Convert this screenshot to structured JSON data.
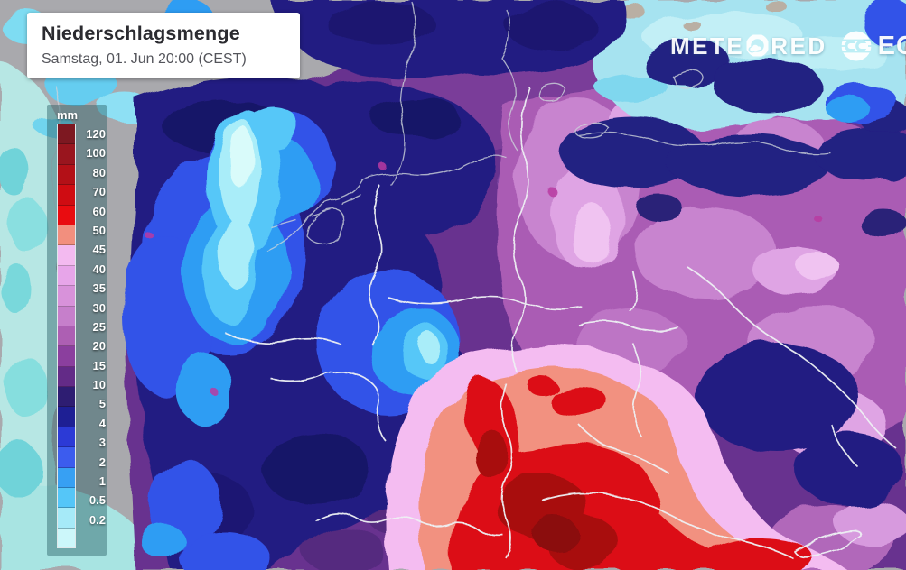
{
  "header": {
    "title": "Niederschlagsmenge",
    "subtitle": "Samstag, 01. Jun 20:00 (CEST)"
  },
  "watermark": {
    "brand": "METEORED",
    "brand_pre": "METE",
    "brand_post": "RED",
    "partner_abbrev": "EC"
  },
  "legend": {
    "unit": "mm",
    "steps": [
      {
        "label": "120",
        "color": "#7d1821"
      },
      {
        "label": "100",
        "color": "#99151e"
      },
      {
        "label": "80",
        "color": "#b31017"
      },
      {
        "label": "70",
        "color": "#cf0c12"
      },
      {
        "label": "60",
        "color": "#e90c10"
      },
      {
        "label": "50",
        "color": "#f28f7e"
      },
      {
        "label": "45",
        "color": "#f3baf0"
      },
      {
        "label": "40",
        "color": "#e7a5e9"
      },
      {
        "label": "35",
        "color": "#d892da"
      },
      {
        "label": "30",
        "color": "#c67fcb"
      },
      {
        "label": "25",
        "color": "#ad5fb3"
      },
      {
        "label": "20",
        "color": "#8b3f9e"
      },
      {
        "label": "15",
        "color": "#632b87"
      },
      {
        "label": "10",
        "color": "#2e1d72"
      },
      {
        "label": "5",
        "color": "#1e1f94"
      },
      {
        "label": "4",
        "color": "#2c3ad6"
      },
      {
        "label": "3",
        "color": "#3c5cee"
      },
      {
        "label": "2",
        "color": "#37a0f3"
      },
      {
        "label": "1",
        "color": "#55c6f8"
      },
      {
        "label": "0.5",
        "color": "#a6eaf8"
      },
      {
        "label": "0.2",
        "color": "#ccf7fa"
      }
    ]
  },
  "map_colors": {
    "no_precip_gray": "#a9a9ad",
    "sea_wash_teal": "#b7e7e4",
    "top_right_cyan": "#a6e3f0",
    "border_line": "#eef1f4"
  }
}
